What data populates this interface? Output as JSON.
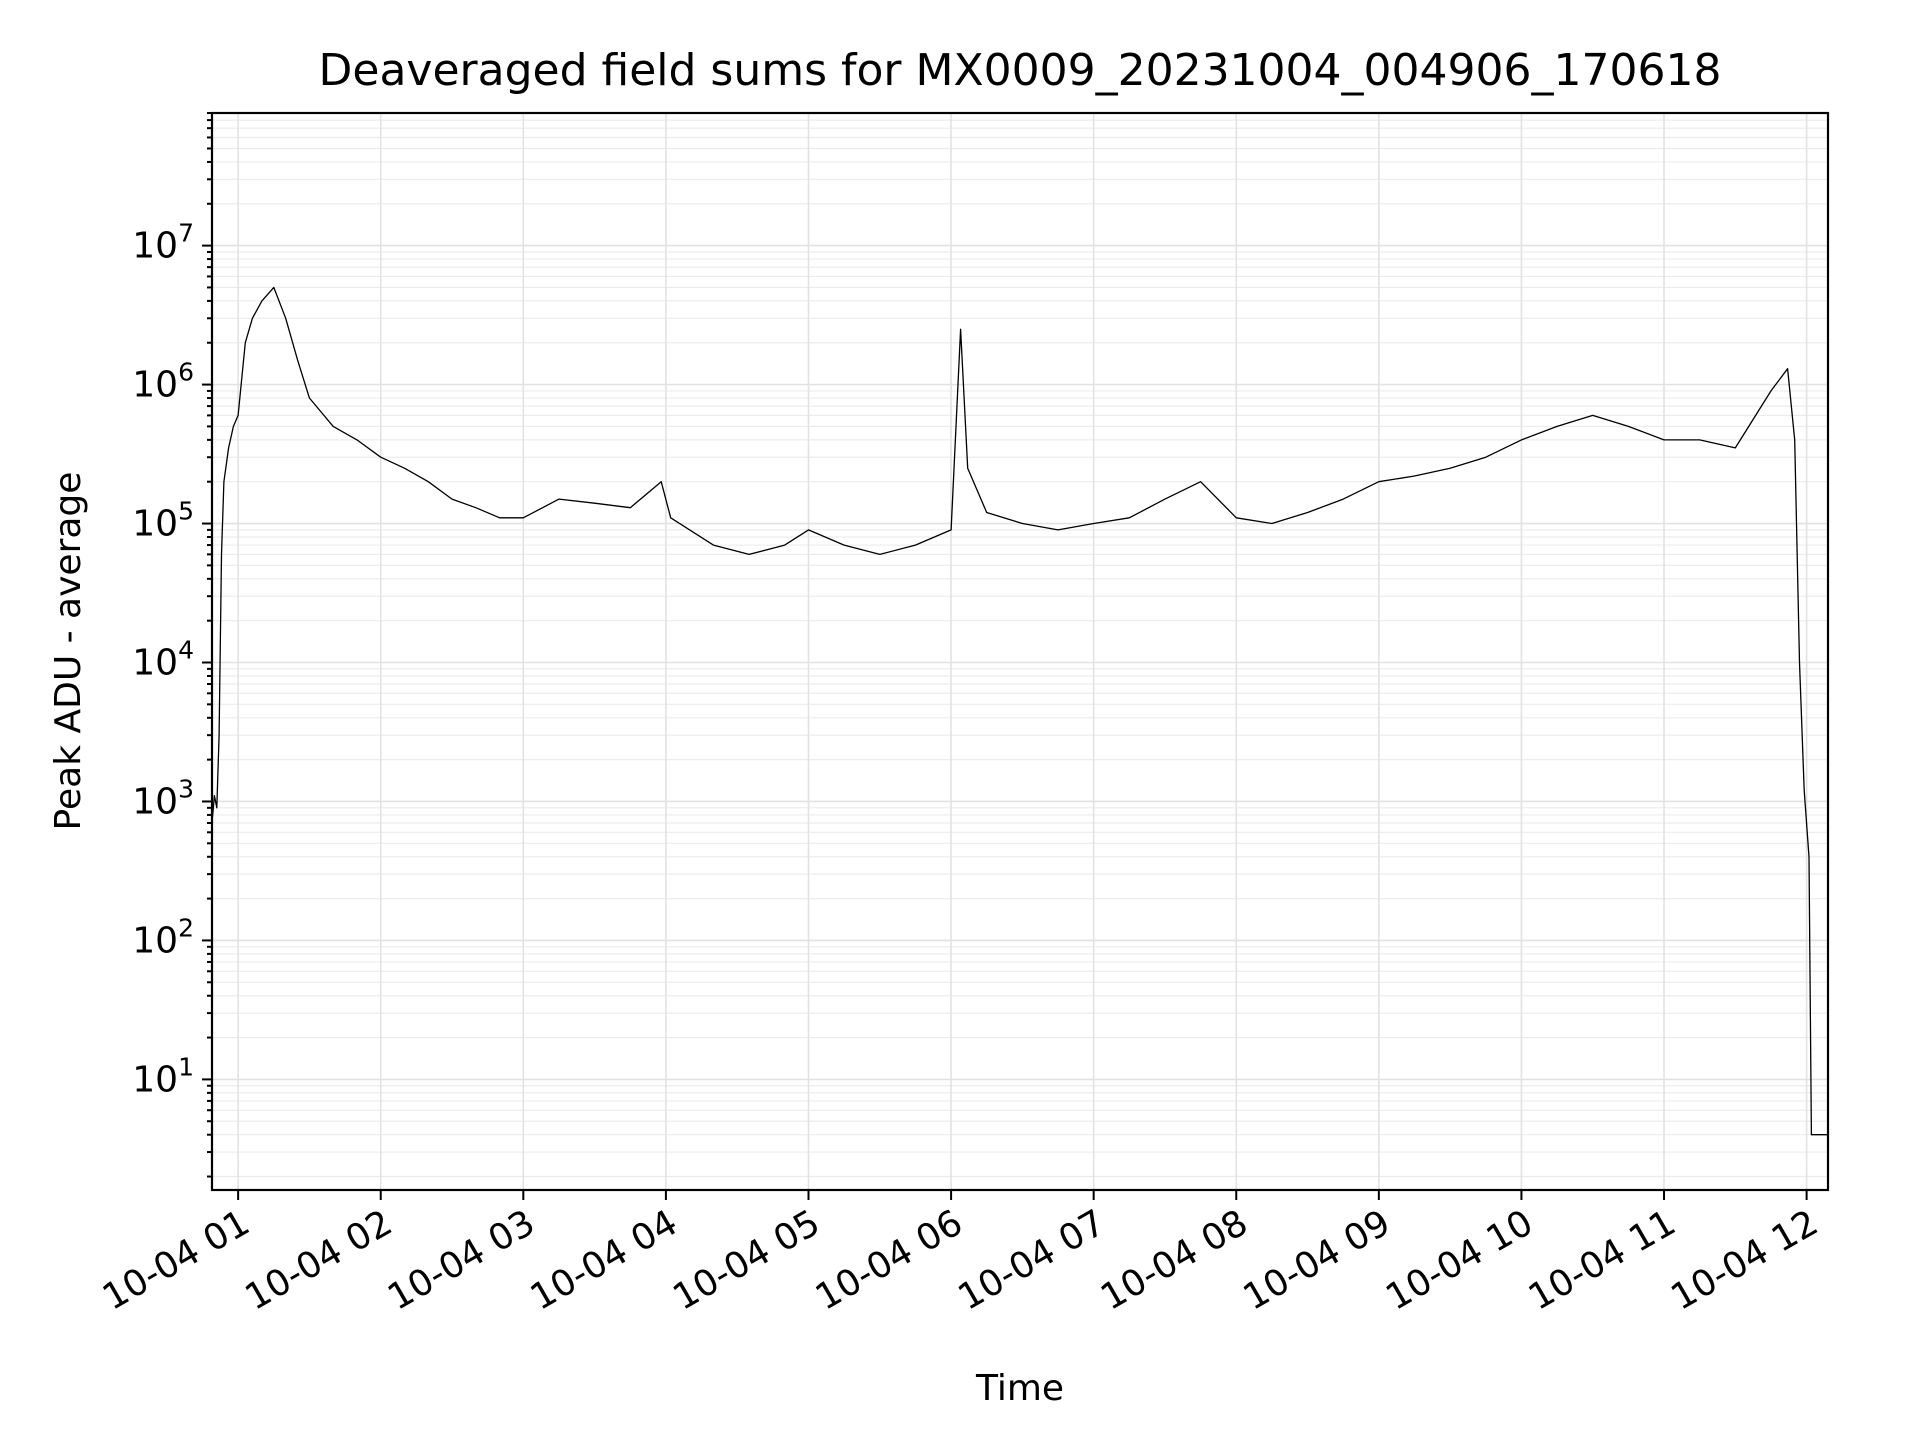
{
  "chart_data": {
    "type": "line",
    "title": "Deaveraged field sums for MX0009_20231004_004906_170618",
    "xlabel": "Time",
    "ylabel": "Peak ADU - average",
    "yscale": "log",
    "ylim": [
      1.6,
      90000000
    ],
    "xlim": [
      "2023-10-04T00:49:00",
      "2023-10-04T12:09:00"
    ],
    "grid": true,
    "x_ticks": [
      "10-04 01",
      "10-04 02",
      "10-04 03",
      "10-04 04",
      "10-04 05",
      "10-04 06",
      "10-04 07",
      "10-04 08",
      "10-04 09",
      "10-04 10",
      "10-04 11",
      "10-04 12"
    ],
    "y_ticks": [
      {
        "base": "10",
        "exp": "1",
        "value": 10
      },
      {
        "base": "10",
        "exp": "2",
        "value": 100
      },
      {
        "base": "10",
        "exp": "3",
        "value": 1000
      },
      {
        "base": "10",
        "exp": "4",
        "value": 10000
      },
      {
        "base": "10",
        "exp": "5",
        "value": 100000
      },
      {
        "base": "10",
        "exp": "6",
        "value": 1000000
      },
      {
        "base": "10",
        "exp": "7",
        "value": 10000000
      }
    ],
    "series": [
      {
        "color": "#000000",
        "points": [
          [
            "2023-10-04T00:49:00",
            700
          ],
          [
            "2023-10-04T00:50:00",
            1100
          ],
          [
            "2023-10-04T00:51:00",
            900
          ],
          [
            "2023-10-04T00:52:00",
            3000
          ],
          [
            "2023-10-04T00:53:00",
            60000
          ],
          [
            "2023-10-04T00:54:00",
            200000
          ],
          [
            "2023-10-04T00:56:00",
            350000
          ],
          [
            "2023-10-04T00:58:00",
            500000
          ],
          [
            "2023-10-04T01:00:00",
            600000
          ],
          [
            "2023-10-04T01:03:00",
            2000000
          ],
          [
            "2023-10-04T01:06:00",
            3000000
          ],
          [
            "2023-10-04T01:10:00",
            4000000
          ],
          [
            "2023-10-04T01:15:00",
            5000000
          ],
          [
            "2023-10-04T01:20:00",
            3000000
          ],
          [
            "2023-10-04T01:25:00",
            1500000
          ],
          [
            "2023-10-04T01:30:00",
            800000
          ],
          [
            "2023-10-04T01:40:00",
            500000
          ],
          [
            "2023-10-04T01:50:00",
            400000
          ],
          [
            "2023-10-04T02:00:00",
            300000
          ],
          [
            "2023-10-04T02:10:00",
            250000
          ],
          [
            "2023-10-04T02:20:00",
            200000
          ],
          [
            "2023-10-04T02:30:00",
            150000
          ],
          [
            "2023-10-04T02:40:00",
            130000
          ],
          [
            "2023-10-04T02:50:00",
            110000
          ],
          [
            "2023-10-04T03:00:00",
            110000
          ],
          [
            "2023-10-04T03:15:00",
            150000
          ],
          [
            "2023-10-04T03:30:00",
            140000
          ],
          [
            "2023-10-04T03:45:00",
            130000
          ],
          [
            "2023-10-04T03:58:00",
            200000
          ],
          [
            "2023-10-04T04:02:00",
            110000
          ],
          [
            "2023-10-04T04:20:00",
            70000
          ],
          [
            "2023-10-04T04:35:00",
            60000
          ],
          [
            "2023-10-04T04:50:00",
            70000
          ],
          [
            "2023-10-04T05:00:00",
            90000
          ],
          [
            "2023-10-04T05:15:00",
            70000
          ],
          [
            "2023-10-04T05:30:00",
            60000
          ],
          [
            "2023-10-04T05:45:00",
            70000
          ],
          [
            "2023-10-04T06:00:00",
            90000
          ],
          [
            "2023-10-04T06:04:00",
            2500000
          ],
          [
            "2023-10-04T06:07:00",
            250000
          ],
          [
            "2023-10-04T06:15:00",
            120000
          ],
          [
            "2023-10-04T06:30:00",
            100000
          ],
          [
            "2023-10-04T06:45:00",
            90000
          ],
          [
            "2023-10-04T07:00:00",
            100000
          ],
          [
            "2023-10-04T07:15:00",
            110000
          ],
          [
            "2023-10-04T07:30:00",
            150000
          ],
          [
            "2023-10-04T07:45:00",
            200000
          ],
          [
            "2023-10-04T08:00:00",
            110000
          ],
          [
            "2023-10-04T08:15:00",
            100000
          ],
          [
            "2023-10-04T08:30:00",
            120000
          ],
          [
            "2023-10-04T08:45:00",
            150000
          ],
          [
            "2023-10-04T09:00:00",
            200000
          ],
          [
            "2023-10-04T09:15:00",
            220000
          ],
          [
            "2023-10-04T09:30:00",
            250000
          ],
          [
            "2023-10-04T09:45:00",
            300000
          ],
          [
            "2023-10-04T10:00:00",
            400000
          ],
          [
            "2023-10-04T10:15:00",
            500000
          ],
          [
            "2023-10-04T10:30:00",
            600000
          ],
          [
            "2023-10-04T10:45:00",
            500000
          ],
          [
            "2023-10-04T11:00:00",
            400000
          ],
          [
            "2023-10-04T11:15:00",
            400000
          ],
          [
            "2023-10-04T11:30:00",
            350000
          ],
          [
            "2023-10-04T11:45:00",
            900000
          ],
          [
            "2023-10-04T11:52:00",
            1300000
          ],
          [
            "2023-10-04T11:55:00",
            400000
          ],
          [
            "2023-10-04T11:57:00",
            10000
          ],
          [
            "2023-10-04T11:59:00",
            1200
          ],
          [
            "2023-10-04T12:01:00",
            400
          ],
          [
            "2023-10-04T12:02:00",
            4
          ],
          [
            "2023-10-04T12:09:00",
            4
          ]
        ]
      }
    ]
  }
}
